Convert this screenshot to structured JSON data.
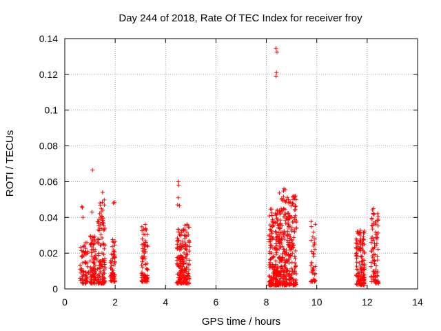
{
  "chart_data": {
    "type": "scatter",
    "title": "Day 244 of 2018, Rate Of TEC Index for receiver froy",
    "xlabel": "GPS time / hours",
    "ylabel": "ROTI / TECUs",
    "xlim": [
      0,
      14
    ],
    "ylim": [
      0,
      0.14
    ],
    "xticks": [
      0,
      2,
      4,
      6,
      8,
      10,
      12,
      14
    ],
    "yticks": [
      0,
      0.02,
      0.04,
      0.06,
      0.08,
      0.1,
      0.12,
      0.14
    ],
    "xtick_labels": [
      "0",
      "2",
      "4",
      "6",
      "8",
      "10",
      "12",
      "14"
    ],
    "ytick_labels": [
      "0",
      "0.02",
      "0.04",
      "0.06",
      "0.08",
      "0.1",
      "0.12",
      "0.14"
    ],
    "grid": true,
    "marker": "+",
    "color": "#ff0000",
    "clusters": [
      {
        "x_range": [
          0.6,
          0.95
        ],
        "y_range": [
          0.003,
          0.026
        ],
        "count": 70
      },
      {
        "x_range": [
          1.0,
          1.25
        ],
        "y_range": [
          0.003,
          0.03
        ],
        "count": 90
      },
      {
        "x_range": [
          1.3,
          1.6
        ],
        "y_range": [
          0.003,
          0.05
        ],
        "count": 120
      },
      {
        "x_range": [
          1.8,
          2.0
        ],
        "y_range": [
          0.004,
          0.028
        ],
        "count": 60
      },
      {
        "x_range": [
          3.05,
          3.3
        ],
        "y_range": [
          0.004,
          0.04
        ],
        "count": 80
      },
      {
        "x_range": [
          4.45,
          4.7
        ],
        "y_range": [
          0.003,
          0.035
        ],
        "count": 100
      },
      {
        "x_range": [
          4.7,
          4.95
        ],
        "y_range": [
          0.003,
          0.038
        ],
        "count": 90
      },
      {
        "x_range": [
          8.1,
          8.5
        ],
        "y_range": [
          0.002,
          0.045
        ],
        "count": 200
      },
      {
        "x_range": [
          8.5,
          8.9
        ],
        "y_range": [
          0.002,
          0.055
        ],
        "count": 180
      },
      {
        "x_range": [
          8.9,
          9.2
        ],
        "y_range": [
          0.002,
          0.052
        ],
        "count": 120
      },
      {
        "x_range": [
          9.75,
          9.95
        ],
        "y_range": [
          0.004,
          0.039
        ],
        "count": 40
      },
      {
        "x_range": [
          11.55,
          11.9
        ],
        "y_range": [
          0.002,
          0.033
        ],
        "count": 140
      },
      {
        "x_range": [
          12.15,
          12.45
        ],
        "y_range": [
          0.003,
          0.045
        ],
        "count": 90
      }
    ],
    "outliers": [
      {
        "x": 0.68,
        "y": 0.046
      },
      {
        "x": 0.7,
        "y": 0.0455
      },
      {
        "x": 0.72,
        "y": 0.04
      },
      {
        "x": 1.1,
        "y": 0.0665
      },
      {
        "x": 1.08,
        "y": 0.043
      },
      {
        "x": 1.5,
        "y": 0.054
      },
      {
        "x": 1.93,
        "y": 0.048
      },
      {
        "x": 1.97,
        "y": 0.0485
      },
      {
        "x": 4.5,
        "y": 0.06
      },
      {
        "x": 4.52,
        "y": 0.058
      },
      {
        "x": 4.48,
        "y": 0.047
      },
      {
        "x": 4.55,
        "y": 0.0465
      },
      {
        "x": 4.5,
        "y": 0.051
      },
      {
        "x": 8.38,
        "y": 0.1345
      },
      {
        "x": 8.42,
        "y": 0.1325
      },
      {
        "x": 8.4,
        "y": 0.121
      },
      {
        "x": 8.38,
        "y": 0.119
      },
      {
        "x": 8.7,
        "y": 0.056
      },
      {
        "x": 8.75,
        "y": 0.0555
      },
      {
        "x": 9.15,
        "y": 0.052
      },
      {
        "x": 9.18,
        "y": 0.05
      },
      {
        "x": 12.25,
        "y": 0.045
      }
    ]
  }
}
